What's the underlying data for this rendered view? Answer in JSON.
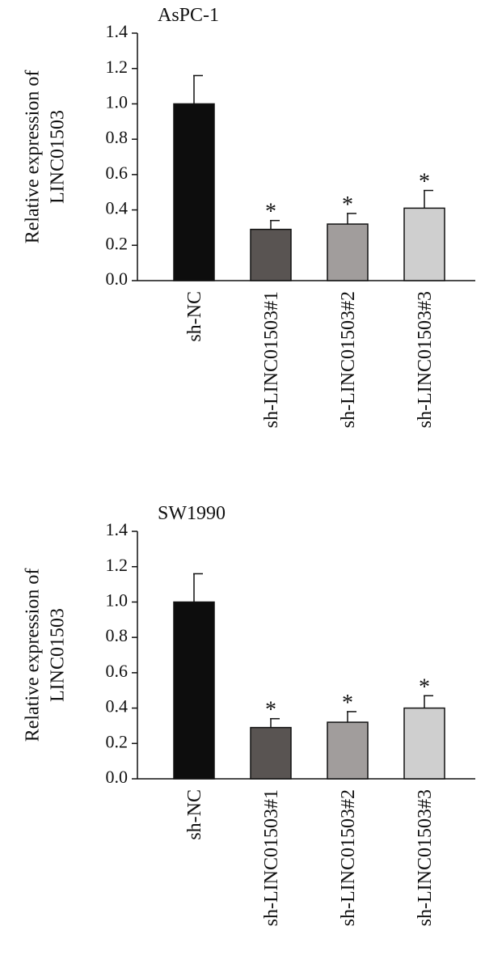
{
  "chart_data": [
    {
      "type": "bar",
      "title": "AsPC-1",
      "ylabel_lines": [
        "Relative expression of",
        "LINC01503"
      ],
      "categories": [
        "sh-NC",
        "sh-LINC01503#1",
        "sh-LINC01503#2",
        "sh-LINC01503#3"
      ],
      "values": [
        1.0,
        0.29,
        0.32,
        0.41
      ],
      "errors": [
        0.16,
        0.05,
        0.06,
        0.1
      ],
      "significance": [
        "",
        "*",
        "*",
        "*"
      ],
      "colors": [
        "#0d0d0d",
        "#595452",
        "#a19d9c",
        "#cfcfcf"
      ],
      "ylim": [
        0,
        1.4
      ],
      "yticks": [
        "0.0",
        "0.2",
        "0.4",
        "0.6",
        "0.8",
        "1.0",
        "1.2",
        "1.4"
      ],
      "grid": false
    },
    {
      "type": "bar",
      "title": "SW1990",
      "ylabel_lines": [
        "Relative expression of",
        "LINC01503"
      ],
      "categories": [
        "sh-NC",
        "sh-LINC01503#1",
        "sh-LINC01503#2",
        "sh-LINC01503#3"
      ],
      "values": [
        1.0,
        0.29,
        0.32,
        0.4
      ],
      "errors": [
        0.16,
        0.05,
        0.06,
        0.07
      ],
      "significance": [
        "",
        "*",
        "*",
        "*"
      ],
      "colors": [
        "#0d0d0d",
        "#595452",
        "#a19d9c",
        "#cfcfcf"
      ],
      "ylim": [
        0,
        1.4
      ],
      "yticks": [
        "0.0",
        "0.2",
        "0.4",
        "0.6",
        "0.8",
        "1.0",
        "1.2",
        "1.4"
      ],
      "grid": false
    }
  ]
}
